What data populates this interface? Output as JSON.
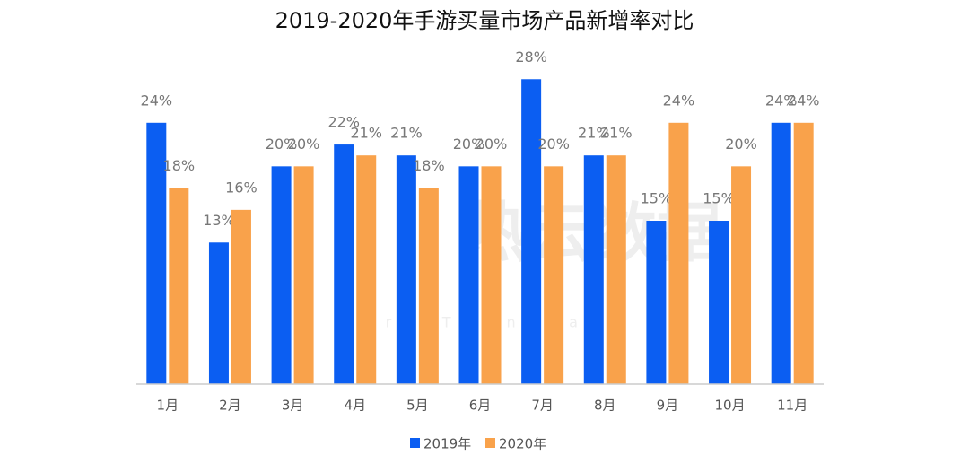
{
  "chart_data": {
    "type": "bar",
    "title": "2019-2020年手游买量市场产品新增率对比",
    "watermark": "热云数据",
    "watermark_subtitle": "More Than Data",
    "categories": [
      "1月",
      "2月",
      "3月",
      "4月",
      "5月",
      "6月",
      "7月",
      "8月",
      "9月",
      "10月",
      "11月"
    ],
    "series": [
      {
        "name": "2019年",
        "color": "#0b5ef2",
        "values": [
          24,
          13,
          20,
          22,
          21,
          20,
          28,
          21,
          15,
          15,
          24
        ],
        "value_labels": [
          "24%",
          "13%",
          "20%",
          "22%",
          "21%",
          "20%",
          "28%",
          "21%",
          "15%",
          "15%",
          "24%"
        ]
      },
      {
        "name": "2020年",
        "color": "#f9a24b",
        "values": [
          18,
          16,
          20,
          21,
          18,
          20,
          20,
          21,
          24,
          20,
          24
        ],
        "value_labels": [
          "18%",
          "16%",
          "20%",
          "21%",
          "18%",
          "20%",
          "20%",
          "21%",
          "24%",
          "20%",
          "24%"
        ]
      }
    ],
    "ylim": [
      0,
      30
    ],
    "grid": false,
    "legend": "bottom"
  }
}
